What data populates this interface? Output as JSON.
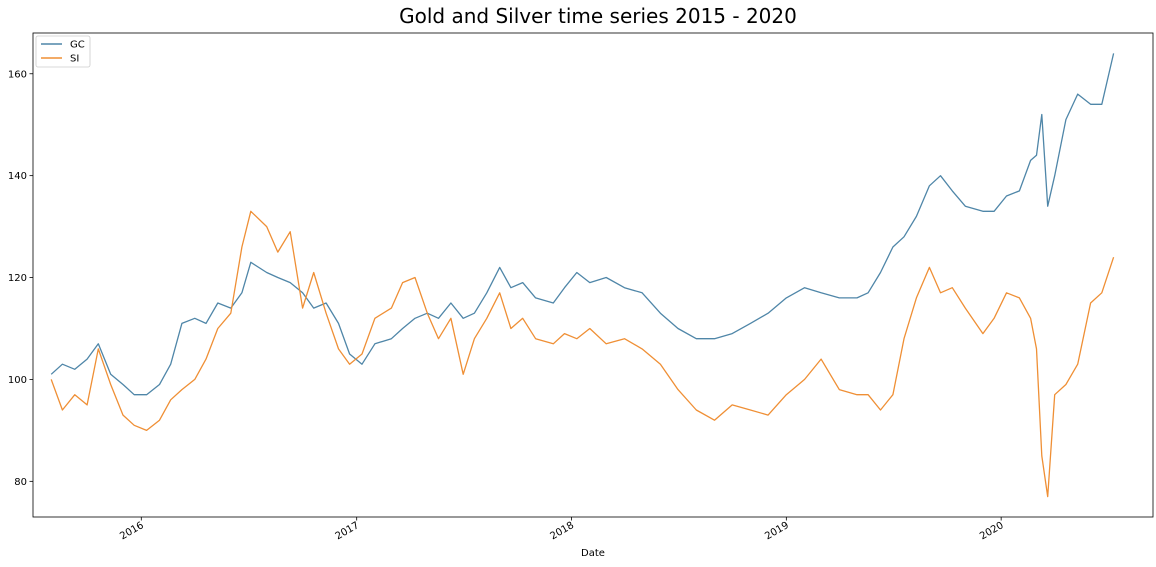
{
  "chart_data": {
    "type": "line",
    "title": "Gold and Silver time series 2015 - 2020",
    "xlabel": "Date",
    "ylabel": "",
    "xlim": [
      "2015-07-01",
      "2020-09-15"
    ],
    "ylim": [
      73,
      168
    ],
    "x_ticks": [
      {
        "date": "2016-01-01",
        "label": "2016"
      },
      {
        "date": "2017-01-01",
        "label": "2017"
      },
      {
        "date": "2018-01-01",
        "label": "2018"
      },
      {
        "date": "2019-01-01",
        "label": "2019"
      },
      {
        "date": "2020-01-01",
        "label": "2020"
      }
    ],
    "y_ticks": [
      80,
      100,
      120,
      140,
      160
    ],
    "grid": false,
    "legend": {
      "position": "top-left"
    },
    "series": [
      {
        "name": "GC",
        "color": "#4f86a8",
        "x": [
          "2015-08-01",
          "2015-08-20",
          "2015-09-10",
          "2015-10-01",
          "2015-10-20",
          "2015-11-10",
          "2015-12-01",
          "2015-12-20",
          "2016-01-10",
          "2016-02-01",
          "2016-02-20",
          "2016-03-10",
          "2016-04-01",
          "2016-04-20",
          "2016-05-10",
          "2016-06-01",
          "2016-06-20",
          "2016-07-05",
          "2016-08-01",
          "2016-08-20",
          "2016-09-10",
          "2016-10-01",
          "2016-10-20",
          "2016-11-10",
          "2016-12-01",
          "2016-12-20",
          "2017-01-10",
          "2017-02-01",
          "2017-03-01",
          "2017-03-20",
          "2017-04-10",
          "2017-05-01",
          "2017-05-20",
          "2017-06-10",
          "2017-07-01",
          "2017-07-20",
          "2017-08-10",
          "2017-09-01",
          "2017-09-20",
          "2017-10-10",
          "2017-11-01",
          "2017-12-01",
          "2017-12-20",
          "2018-01-10",
          "2018-02-01",
          "2018-03-01",
          "2018-04-01",
          "2018-05-01",
          "2018-06-01",
          "2018-07-01",
          "2018-08-01",
          "2018-09-01",
          "2018-10-01",
          "2018-11-01",
          "2018-12-01",
          "2019-01-01",
          "2019-02-01",
          "2019-03-01",
          "2019-04-01",
          "2019-05-01",
          "2019-05-20",
          "2019-06-10",
          "2019-07-01",
          "2019-07-20",
          "2019-08-10",
          "2019-09-01",
          "2019-09-20",
          "2019-10-10",
          "2019-11-01",
          "2019-12-01",
          "2019-12-20",
          "2020-01-10",
          "2020-02-01",
          "2020-02-20",
          "2020-03-01",
          "2020-03-10",
          "2020-03-20",
          "2020-04-01",
          "2020-04-20",
          "2020-05-10",
          "2020-06-01",
          "2020-06-20",
          "2020-07-10"
        ],
        "values": [
          101,
          103,
          102,
          104,
          107,
          101,
          99,
          97,
          97,
          99,
          103,
          111,
          112,
          111,
          115,
          114,
          117,
          123,
          121,
          120,
          119,
          117,
          114,
          115,
          111,
          105,
          103,
          107,
          108,
          110,
          112,
          113,
          112,
          115,
          112,
          113,
          117,
          122,
          118,
          119,
          116,
          115,
          118,
          121,
          119,
          120,
          118,
          117,
          113,
          110,
          108,
          108,
          109,
          111,
          113,
          116,
          118,
          117,
          116,
          116,
          117,
          121,
          126,
          128,
          132,
          138,
          140,
          137,
          134,
          133,
          133,
          136,
          137,
          143,
          144,
          152,
          134,
          140,
          151,
          156,
          154,
          154,
          164
        ]
      },
      {
        "name": "SI",
        "color": "#ef8f35",
        "x": [
          "2015-08-01",
          "2015-08-20",
          "2015-09-10",
          "2015-10-01",
          "2015-10-20",
          "2015-11-10",
          "2015-12-01",
          "2015-12-20",
          "2016-01-10",
          "2016-02-01",
          "2016-02-20",
          "2016-03-10",
          "2016-04-01",
          "2016-04-20",
          "2016-05-10",
          "2016-06-01",
          "2016-06-20",
          "2016-07-05",
          "2016-08-01",
          "2016-08-20",
          "2016-09-10",
          "2016-10-01",
          "2016-10-20",
          "2016-11-10",
          "2016-12-01",
          "2016-12-20",
          "2017-01-10",
          "2017-02-01",
          "2017-03-01",
          "2017-03-20",
          "2017-04-10",
          "2017-05-01",
          "2017-05-20",
          "2017-06-10",
          "2017-07-01",
          "2017-07-20",
          "2017-08-10",
          "2017-09-01",
          "2017-09-20",
          "2017-10-10",
          "2017-11-01",
          "2017-12-01",
          "2017-12-20",
          "2018-01-10",
          "2018-02-01",
          "2018-03-01",
          "2018-04-01",
          "2018-05-01",
          "2018-06-01",
          "2018-07-01",
          "2018-08-01",
          "2018-09-01",
          "2018-10-01",
          "2018-11-01",
          "2018-12-01",
          "2019-01-01",
          "2019-02-01",
          "2019-03-01",
          "2019-04-01",
          "2019-05-01",
          "2019-05-20",
          "2019-06-10",
          "2019-07-01",
          "2019-07-20",
          "2019-08-10",
          "2019-09-01",
          "2019-09-20",
          "2019-10-10",
          "2019-11-01",
          "2019-12-01",
          "2019-12-20",
          "2020-01-10",
          "2020-02-01",
          "2020-02-20",
          "2020-03-01",
          "2020-03-10",
          "2020-03-20",
          "2020-04-01",
          "2020-04-20",
          "2020-05-10",
          "2020-06-01",
          "2020-06-20",
          "2020-07-10"
        ],
        "values": [
          100,
          94,
          97,
          95,
          106,
          99,
          93,
          91,
          90,
          92,
          96,
          98,
          100,
          104,
          110,
          113,
          126,
          133,
          130,
          125,
          129,
          114,
          121,
          113,
          106,
          103,
          105,
          112,
          114,
          119,
          120,
          113,
          108,
          112,
          101,
          108,
          112,
          117,
          110,
          112,
          108,
          107,
          109,
          108,
          110,
          107,
          108,
          106,
          103,
          98,
          94,
          92,
          95,
          94,
          93,
          97,
          100,
          104,
          98,
          97,
          97,
          94,
          97,
          108,
          116,
          122,
          117,
          118,
          114,
          109,
          112,
          117,
          116,
          112,
          106,
          85,
          77,
          97,
          99,
          103,
          115,
          117,
          124
        ]
      }
    ]
  }
}
